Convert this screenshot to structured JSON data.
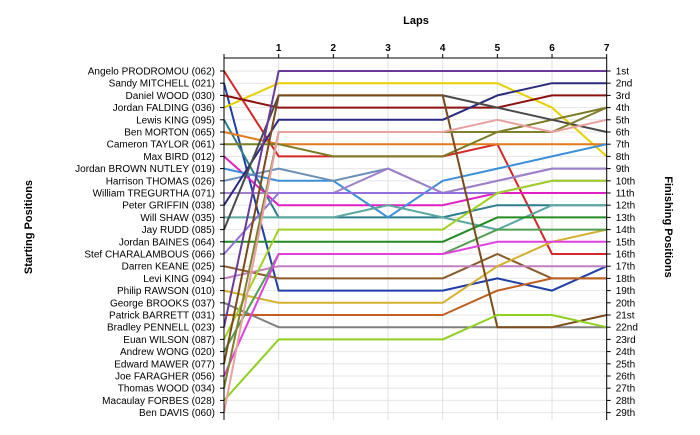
{
  "chart_data": {
    "type": "line",
    "title": "Laps",
    "y_left_label": "Starting Positions",
    "y_right_label": "Finishing Positions",
    "x_ticks": [
      "1",
      "2",
      "3",
      "4",
      "5",
      "6",
      "7"
    ],
    "finishing_labels": [
      "1st",
      "2nd",
      "3rd",
      "4th",
      "5th",
      "6th",
      "7th",
      "8th",
      "9th",
      "10th",
      "11th",
      "12th",
      "13th",
      "14th",
      "15th",
      "16th",
      "17th",
      "18th",
      "19th",
      "20th",
      "21st",
      "22nd",
      "23rd",
      "24th",
      "25th",
      "26th",
      "27th",
      "28th",
      "29th"
    ],
    "series": [
      {
        "name": "Angelo PRODROMOU (062)",
        "color": "#d62728",
        "positions": [
          1,
          8,
          8,
          8,
          8,
          7,
          16,
          16
        ]
      },
      {
        "name": "Sandy MITCHELL (021)",
        "color": "#1f3ea8",
        "positions": [
          2,
          19,
          19,
          19,
          19,
          18,
          19,
          17
        ]
      },
      {
        "name": "Jordan FALDING (036)",
        "color": "#e8d000",
        "positions": [
          4,
          2,
          2,
          2,
          2,
          2,
          4,
          8
        ]
      },
      {
        "name": "Daniel WOOD (030)",
        "color": "#8b1010",
        "positions": [
          3,
          4,
          4,
          4,
          4,
          4,
          3,
          3
        ]
      },
      {
        "name": "Lewis KING (095)",
        "color": "#2e7d8c",
        "positions": [
          5,
          13,
          13,
          13,
          13,
          12,
          12,
          12
        ]
      },
      {
        "name": "Ben MORTON (065)",
        "color": "#e07a1a",
        "positions": [
          6,
          7,
          7,
          7,
          7,
          7,
          7,
          7
        ]
      },
      {
        "name": "Cameron TAYLOR (061)",
        "color": "#7b7b24",
        "positions": [
          7,
          7,
          8,
          8,
          8,
          6,
          5,
          4
        ]
      },
      {
        "name": "Max BIRD (012)",
        "color": "#e020c0",
        "positions": [
          8,
          12,
          12,
          12,
          12,
          11,
          11,
          11
        ]
      },
      {
        "name": "Jordan BROWN NUTLEY (019)",
        "color": "#3a8fd6",
        "positions": [
          9,
          10,
          10,
          13,
          10,
          9,
          8,
          7
        ]
      },
      {
        "name": "Harrison THOMAS (026)",
        "color": "#6a8fb8",
        "positions": [
          10,
          9,
          10,
          9,
          11,
          10,
          9,
          9
        ]
      },
      {
        "name": "William TREGURTHA (071)",
        "color": "#a080c8",
        "positions": [
          11,
          11,
          11,
          9,
          11,
          10,
          9,
          9
        ]
      },
      {
        "name": "Peter GRIFFIN (038)",
        "color": "#2a2a80",
        "positions": [
          12,
          5,
          5,
          5,
          5,
          3,
          2,
          2
        ]
      },
      {
        "name": "Will SHAW (035)",
        "color": "#5aa8a0",
        "positions": [
          13,
          13,
          13,
          12,
          13,
          14,
          12,
          12
        ]
      },
      {
        "name": "Jay RUDD (085)",
        "color": "#4a4a4a",
        "positions": [
          14,
          3,
          3,
          3,
          3,
          4,
          5,
          6
        ]
      },
      {
        "name": "Jordan BAINES (064)",
        "color": "#228b22",
        "positions": [
          15,
          15,
          15,
          15,
          15,
          13,
          13,
          13
        ]
      },
      {
        "name": "Stef CHARALAMBOUS (066)",
        "color": "#9370db",
        "positions": [
          16,
          11,
          11,
          11,
          11,
          11,
          10,
          10
        ]
      },
      {
        "name": "Darren KEANE (025)",
        "color": "#8b5a2b",
        "positions": [
          17,
          18,
          18,
          18,
          18,
          16,
          18,
          18
        ]
      },
      {
        "name": "Levi KING (094)",
        "color": "#c080c0",
        "positions": [
          18,
          17,
          17,
          17,
          17,
          17,
          17,
          17
        ]
      },
      {
        "name": "Philip RAWSON (010)",
        "color": "#d4b030",
        "positions": [
          19,
          20,
          20,
          20,
          20,
          17,
          15,
          14
        ]
      },
      {
        "name": "George BROOKS (037)",
        "color": "#808080",
        "positions": [
          20,
          22,
          22,
          22,
          22,
          22,
          22,
          22
        ]
      },
      {
        "name": "Patrick BARRETT (031)",
        "color": "#c06020",
        "positions": [
          21,
          21,
          21,
          21,
          21,
          19,
          18,
          18
        ]
      },
      {
        "name": "Bradley PENNELL (023)",
        "color": "#6a3a9a",
        "positions": [
          22,
          1,
          1,
          1,
          1,
          1,
          1,
          1
        ]
      },
      {
        "name": "Euan WILSON (087)",
        "color": "#a0d020",
        "positions": [
          23,
          14,
          14,
          14,
          14,
          11,
          10,
          10
        ]
      },
      {
        "name": "Andrew WONG (020)",
        "color": "#50a050",
        "positions": [
          24,
          16,
          16,
          16,
          16,
          14,
          14,
          14
        ]
      },
      {
        "name": "Edward MAWER (077)",
        "color": "#7a4a1a",
        "positions": [
          25,
          3,
          3,
          3,
          3,
          22,
          22,
          21
        ]
      },
      {
        "name": "Joe FARAGHER (056)",
        "color": "#e040e0",
        "positions": [
          26,
          16,
          16,
          16,
          16,
          15,
          15,
          15
        ]
      },
      {
        "name": "Thomas WOOD (034)",
        "color": "#808030",
        "positions": [
          27,
          6,
          6,
          6,
          6,
          6,
          6,
          4
        ]
      },
      {
        "name": "Macaulay FORBES (028)",
        "color": "#8fd020",
        "positions": [
          28,
          23,
          23,
          23,
          23,
          21,
          21,
          22
        ]
      },
      {
        "name": "Ben DAVIS (060)",
        "color": "#e8a0a0",
        "positions": [
          29,
          6,
          6,
          6,
          6,
          5,
          6,
          5
        ]
      }
    ]
  }
}
